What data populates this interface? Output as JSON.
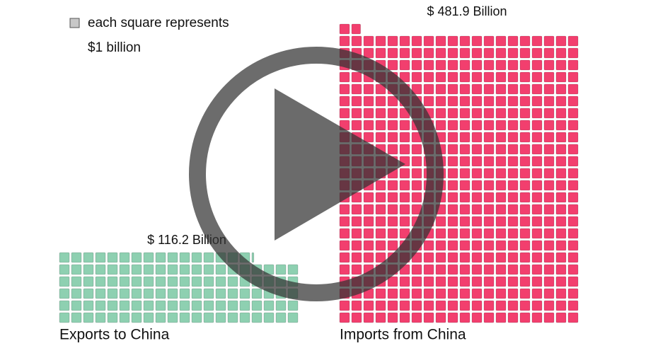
{
  "chart_data": {
    "type": "waffle",
    "legend": [
      "each square represents",
      "$1 billion"
    ],
    "legend_color": "#c8c8c8",
    "categories": [
      "Exports to China",
      "Imports from China"
    ],
    "values": [
      116.2,
      481.9
    ],
    "value_labels": [
      "$ 116.2 Billion",
      "$ 481.9 Billion"
    ],
    "colors": [
      "#8ed0b1",
      "#f23f6e"
    ]
  }
}
